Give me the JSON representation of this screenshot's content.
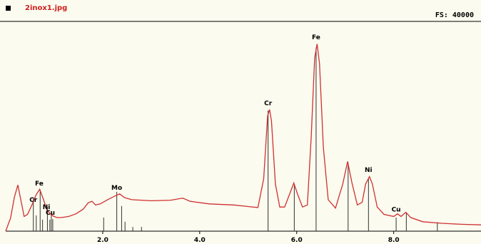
{
  "header": {
    "file_name": "2inox1.jpg",
    "full_scale": "FS: 40000"
  },
  "colors": {
    "spectrum": "#d03030",
    "background": "#fbfbef",
    "axis": "#000000",
    "filename": "#d02020"
  },
  "chart_data": {
    "type": "line",
    "title": "",
    "xlabel": "",
    "ylabel": "",
    "xlim": [
      0,
      9.8
    ],
    "ylim": [
      0,
      40000
    ],
    "x_ticks": [
      "2.0",
      "4.0",
      "6.0",
      "8.0"
    ],
    "x_tick_values": [
      2.0,
      4.0,
      6.0,
      8.0
    ],
    "grid": false,
    "series": [
      {
        "points": [
          [
            0.0,
            0
          ],
          [
            0.1,
            2500
          ],
          [
            0.18,
            6500
          ],
          [
            0.25,
            8800
          ],
          [
            0.3,
            6500
          ],
          [
            0.38,
            2800
          ],
          [
            0.45,
            3200
          ],
          [
            0.55,
            5200
          ],
          [
            0.62,
            6800
          ],
          [
            0.7,
            8000
          ],
          [
            0.78,
            6000
          ],
          [
            0.85,
            4000
          ],
          [
            0.95,
            3000
          ],
          [
            1.05,
            2600
          ],
          [
            1.15,
            2600
          ],
          [
            1.3,
            2800
          ],
          [
            1.45,
            3300
          ],
          [
            1.6,
            4200
          ],
          [
            1.7,
            5400
          ],
          [
            1.78,
            5700
          ],
          [
            1.85,
            5000
          ],
          [
            1.95,
            5200
          ],
          [
            2.1,
            6000
          ],
          [
            2.25,
            6700
          ],
          [
            2.35,
            7100
          ],
          [
            2.45,
            6400
          ],
          [
            2.6,
            6000
          ],
          [
            3.0,
            5800
          ],
          [
            3.4,
            5900
          ],
          [
            3.65,
            6300
          ],
          [
            3.8,
            5700
          ],
          [
            4.2,
            5200
          ],
          [
            4.7,
            5000
          ],
          [
            5.0,
            4700
          ],
          [
            5.2,
            4500
          ],
          [
            5.32,
            10000
          ],
          [
            5.4,
            22000
          ],
          [
            5.44,
            23200
          ],
          [
            5.48,
            21000
          ],
          [
            5.56,
            9000
          ],
          [
            5.65,
            4600
          ],
          [
            5.75,
            4600
          ],
          [
            5.85,
            7000
          ],
          [
            5.94,
            9200
          ],
          [
            6.02,
            7000
          ],
          [
            6.12,
            4600
          ],
          [
            6.22,
            5000
          ],
          [
            6.3,
            18000
          ],
          [
            6.37,
            33000
          ],
          [
            6.42,
            35700
          ],
          [
            6.47,
            32000
          ],
          [
            6.55,
            16000
          ],
          [
            6.65,
            6000
          ],
          [
            6.8,
            4400
          ],
          [
            6.95,
            9000
          ],
          [
            7.05,
            13300
          ],
          [
            7.14,
            9200
          ],
          [
            7.25,
            5000
          ],
          [
            7.35,
            5500
          ],
          [
            7.42,
            9000
          ],
          [
            7.5,
            10400
          ],
          [
            7.56,
            9000
          ],
          [
            7.66,
            4600
          ],
          [
            7.8,
            3200
          ],
          [
            8.0,
            2800
          ],
          [
            8.08,
            3300
          ],
          [
            8.15,
            2800
          ],
          [
            8.25,
            3600
          ],
          [
            8.35,
            2600
          ],
          [
            8.6,
            1800
          ],
          [
            9.0,
            1500
          ],
          [
            9.4,
            1300
          ],
          [
            9.8,
            1200
          ]
        ]
      }
    ],
    "line_markers": [
      {
        "x": 0.57,
        "height": 6400
      },
      {
        "x": 0.63,
        "height": 3000
      },
      {
        "x": 0.71,
        "height": 7800
      },
      {
        "x": 0.76,
        "height": 2200
      },
      {
        "x": 0.86,
        "height": 4600
      },
      {
        "x": 0.91,
        "height": 2200
      },
      {
        "x": 0.94,
        "height": 3600
      },
      {
        "x": 0.97,
        "height": 2300
      },
      {
        "x": 2.02,
        "height": 2600
      },
      {
        "x": 2.29,
        "height": 7500
      },
      {
        "x": 2.39,
        "height": 4800
      },
      {
        "x": 2.46,
        "height": 1800
      },
      {
        "x": 2.62,
        "height": 800
      },
      {
        "x": 2.8,
        "height": 800
      },
      {
        "x": 5.41,
        "height": 23000
      },
      {
        "x": 5.95,
        "height": 8800
      },
      {
        "x": 6.4,
        "height": 35000
      },
      {
        "x": 7.06,
        "height": 13000
      },
      {
        "x": 7.48,
        "height": 10000
      },
      {
        "x": 8.05,
        "height": 2600
      },
      {
        "x": 8.26,
        "height": 3500
      },
      {
        "x": 8.9,
        "height": 1700
      }
    ],
    "annotations": [
      {
        "text": "Cr",
        "x": 0.57,
        "y": 5200
      },
      {
        "text": "Fe",
        "x": 0.69,
        "y": 8300
      },
      {
        "text": "Ni",
        "x": 0.84,
        "y": 3800
      },
      {
        "text": "Cu",
        "x": 0.92,
        "y": 2700
      },
      {
        "text": "Mo",
        "x": 2.29,
        "y": 7500
      },
      {
        "text": "Cr",
        "x": 5.41,
        "y": 23600
      },
      {
        "text": "Fe",
        "x": 6.4,
        "y": 36200
      },
      {
        "text": "Ni",
        "x": 7.48,
        "y": 10900
      },
      {
        "text": "Cu",
        "x": 8.05,
        "y": 3300
      }
    ]
  }
}
